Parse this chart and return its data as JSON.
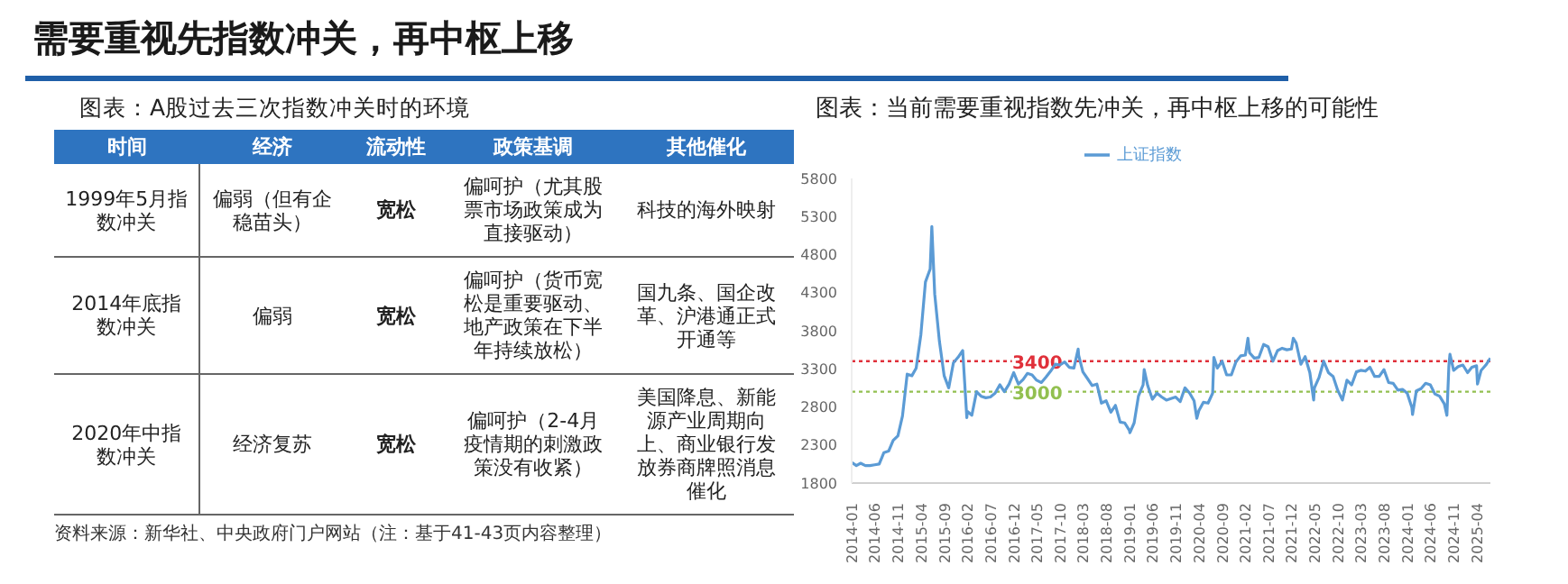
{
  "chart_data": [
    {
      "type": "other",
      "title": "需要重视先指数冲关，再中枢上移",
      "subtitle": "图表：A股过去三次指数冲关时的环境",
      "categories": [
        "时间",
        "经济",
        "流动性",
        "政策基调",
        "其他催化"
      ],
      "cell_labels": [
        [
          "1999年5月指数冲关",
          "偏弱（但有企稳苗头）",
          "宽松",
          "偏呵护（尤其股票市场政策成为直接驱动）",
          "科技的海外映射"
        ],
        [
          "2014年底指数冲关",
          "偏弱",
          "宽松",
          "偏呵护（货币宽松是重要驱动、地产政策在下半年持续放松）",
          "国九条、国企改革、沪港通正式开通等"
        ],
        [
          "2020年中指数冲关",
          "经济复苏",
          "宽松",
          "偏呵护（2-4月疫情期的刺激政策没有收紧）",
          "美国降息、新能源产业周期向上、商业银行发放券商牌照消息催化"
        ]
      ],
      "annotations": [
        "资料来源：新华社、中央政府门户网站（注：基于41-43页内容整理）"
      ]
    },
    {
      "type": "line",
      "title": "图表：当前需要重视指数先冲关，再中枢上移的可能性",
      "legend": "top",
      "x": [
        "2014-01",
        "2014-02",
        "2014-03",
        "2014-04",
        "2014-05",
        "2014-06",
        "2014-07",
        "2014-08",
        "2014-09",
        "2014-10",
        "2014-11",
        "2014-12",
        "2015-01",
        "2015-02",
        "2015-03",
        "2015-04",
        "2015-05",
        "2015-06",
        "2015-06-12",
        "2015-07",
        "2015-08",
        "2015-09",
        "2015-10",
        "2015-11",
        "2015-12",
        "2016-01",
        "2016-01-28",
        "2016-02",
        "2016-03",
        "2016-04",
        "2016-05",
        "2016-06",
        "2016-07",
        "2016-08",
        "2016-09",
        "2016-10",
        "2016-11",
        "2016-12",
        "2017-01",
        "2017-02",
        "2017-03",
        "2017-04",
        "2017-05",
        "2017-06",
        "2017-07",
        "2017-08",
        "2017-09",
        "2017-10",
        "2017-11",
        "2017-12",
        "2018-01",
        "2018-01-29",
        "2018-02",
        "2018-03",
        "2018-04",
        "2018-05",
        "2018-06",
        "2018-07",
        "2018-08",
        "2018-09",
        "2018-10",
        "2018-11",
        "2018-12",
        "2019-01",
        "2019-01-04",
        "2019-02",
        "2019-03",
        "2019-04",
        "2019-04-08",
        "2019-05",
        "2019-06",
        "2019-07",
        "2019-08",
        "2019-09",
        "2019-10",
        "2019-11",
        "2019-12",
        "2020-01",
        "2020-02",
        "2020-03",
        "2020-03-19",
        "2020-04",
        "2020-05",
        "2020-06",
        "2020-07",
        "2020-07-09",
        "2020-08",
        "2020-09",
        "2020-10",
        "2020-11",
        "2020-12",
        "2021-01",
        "2021-02",
        "2021-02-18",
        "2021-03",
        "2021-04",
        "2021-05",
        "2021-06",
        "2021-07",
        "2021-08",
        "2021-09",
        "2021-10",
        "2021-11",
        "2021-12",
        "2021-12-13",
        "2022-01",
        "2022-02",
        "2022-03",
        "2022-04",
        "2022-04-26",
        "2022-05",
        "2022-06",
        "2022-07",
        "2022-08",
        "2022-09",
        "2022-10",
        "2022-11",
        "2022-12",
        "2023-01",
        "2023-02",
        "2023-03",
        "2023-04",
        "2023-05",
        "2023-06",
        "2023-07",
        "2023-08",
        "2023-09",
        "2023-10",
        "2023-11",
        "2023-12",
        "2024-01",
        "2024-02",
        "2024-02-05",
        "2024-03",
        "2024-04",
        "2024-05",
        "2024-06",
        "2024-07",
        "2024-08",
        "2024-09",
        "2024-09-18",
        "2024-10",
        "2024-10-08",
        "2024-11",
        "2024-12",
        "2025-01",
        "2025-02",
        "2025-03",
        "2025-04",
        "2025-04-07",
        "2025-05",
        "2025-06",
        "2025-07"
      ],
      "series": [
        {
          "name": "上证指数",
          "color": "#5b9bd5",
          "values": [
            2070,
            2030,
            2060,
            2030,
            2030,
            2040,
            2050,
            2200,
            2220,
            2360,
            2420,
            2680,
            3230,
            3210,
            3310,
            3750,
            4440,
            4610,
            5170,
            4280,
            3660,
            3210,
            3050,
            3380,
            3450,
            3540,
            2660,
            2740,
            2690,
            3000,
            2940,
            2920,
            2930,
            2980,
            3090,
            3000,
            3100,
            3250,
            3100,
            3160,
            3240,
            3220,
            3150,
            3120,
            3190,
            3270,
            3360,
            3350,
            3390,
            3320,
            3310,
            3560,
            3480,
            3260,
            3170,
            3080,
            3100,
            2850,
            2880,
            2730,
            2820,
            2600,
            2590,
            2490,
            2460,
            2590,
            2940,
            3090,
            3290,
            3080,
            2900,
            2980,
            2930,
            2890,
            2910,
            2930,
            2870,
            3050,
            2980,
            2880,
            2650,
            2750,
            2860,
            2850,
            2980,
            3450,
            3310,
            3400,
            3220,
            3220,
            3390,
            3470,
            3480,
            3700,
            3510,
            3440,
            3450,
            3620,
            3590,
            3400,
            3540,
            3570,
            3550,
            3560,
            3700,
            3640,
            3360,
            3460,
            3250,
            2890,
            3050,
            3190,
            3400,
            3250,
            3200,
            3020,
            2890,
            3150,
            3090,
            3260,
            3280,
            3270,
            3320,
            3200,
            3200,
            3290,
            3120,
            3110,
            3020,
            3030,
            2980,
            2790,
            2700,
            3010,
            3040,
            3110,
            3090,
            2970,
            2940,
            2840,
            2690,
            3340,
            3490,
            3280,
            3330,
            3350,
            3250,
            3320,
            3340,
            3100,
            3280,
            3350,
            3440
          ]
        }
      ],
      "xlim": [
        "2014-01",
        "2025-07"
      ],
      "xticks": [
        "2014-01",
        "2014-06",
        "2014-11",
        "2015-04",
        "2015-09",
        "2016-02",
        "2016-07",
        "2016-12",
        "2017-05",
        "2017-10",
        "2018-03",
        "2018-08",
        "2019-01",
        "2019-06",
        "2019-11",
        "2020-04",
        "2020-09",
        "2021-02",
        "2021-07",
        "2021-12",
        "2022-05",
        "2022-10",
        "2023-03",
        "2023-08",
        "2024-01",
        "2024-06",
        "2024-11",
        "2025-04"
      ],
      "ylim": [
        1800,
        5800
      ],
      "yticks": [
        1800,
        2300,
        2800,
        3300,
        3800,
        4300,
        4800,
        5300,
        5800
      ],
      "ref_lines": [
        {
          "axis": "y",
          "value": 3400,
          "label": "3400",
          "color": "#e0303a",
          "line_style": "dotted"
        },
        {
          "axis": "y",
          "value": 3000,
          "label": "3000",
          "color": "#92c050",
          "line_style": "dotted"
        }
      ]
    }
  ]
}
